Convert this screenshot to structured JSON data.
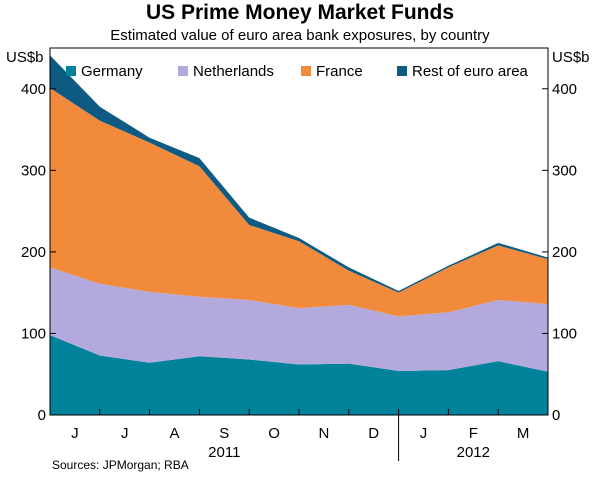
{
  "chart_data": {
    "type": "area",
    "stacked": true,
    "title": "US Prime Money Market Funds",
    "subtitle": "Estimated value of euro area bank exposures, by country",
    "y_unit_left": "US$b",
    "y_unit_right": "US$b",
    "ylim": [
      0,
      450
    ],
    "y_ticks": [
      0,
      100,
      200,
      300,
      400
    ],
    "x_month_labels": [
      "J",
      "J",
      "A",
      "S",
      "O",
      "N",
      "D",
      "J",
      "F",
      "M"
    ],
    "x_year_labels": [
      {
        "label": "2011",
        "after_month_index": 3
      },
      {
        "label": "2012",
        "after_month_index": 8
      }
    ],
    "x": [
      0,
      1,
      2,
      3,
      4,
      5,
      6,
      7,
      8,
      9,
      10
    ],
    "series": [
      {
        "name": "Germany",
        "color": "#00829b",
        "values": [
          98,
          73,
          64,
          72,
          68,
          62,
          63,
          54,
          55,
          66,
          53
        ]
      },
      {
        "name": "Netherlands",
        "color": "#b3a9dc",
        "values": [
          83,
          88,
          87,
          73,
          73,
          69,
          72,
          67,
          71,
          75,
          83
        ]
      },
      {
        "name": "France",
        "color": "#f28a3c",
        "values": [
          220,
          200,
          183,
          160,
          92,
          82,
          42,
          29,
          55,
          67,
          55
        ]
      },
      {
        "name": "Rest of euro area",
        "color": "#0d5a82",
        "values": [
          40,
          17,
          6,
          10,
          9,
          4,
          4,
          2,
          2,
          3,
          2
        ]
      }
    ],
    "legend_position": "top",
    "grid": false,
    "source": "Sources: JPMorgan; RBA"
  }
}
